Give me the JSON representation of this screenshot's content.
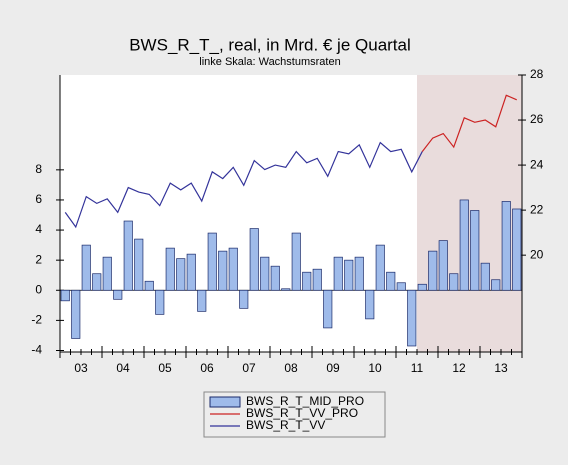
{
  "chart_data": {
    "type": "bar-line",
    "title": "BWS_R_T_, real, in Mrd. € je Quartal",
    "subtitle": "linke Skala: Wachstumsraten",
    "categories": [
      "03",
      null,
      null,
      null,
      "04",
      null,
      null,
      null,
      "05",
      null,
      null,
      null,
      "06",
      null,
      null,
      null,
      "07",
      null,
      null,
      null,
      "08",
      null,
      null,
      null,
      "09",
      null,
      null,
      null,
      "10",
      null,
      null,
      null,
      "11",
      null,
      null,
      null,
      "12",
      null,
      null,
      null,
      "13",
      null,
      null,
      null
    ],
    "series": [
      {
        "name": "BWS_R_T_MID_PRO",
        "type": "bar",
        "color": "#9fbbea",
        "axis": "y",
        "values": [
          -0.7,
          -3.2,
          3.0,
          1.1,
          2.2,
          -0.6,
          4.6,
          3.4,
          0.6,
          -1.6,
          2.8,
          2.1,
          2.4,
          -1.4,
          3.8,
          2.6,
          2.8,
          -1.2,
          4.1,
          2.2,
          1.6,
          0.1,
          3.8,
          1.2,
          1.4,
          -2.5,
          2.2,
          2.0,
          2.2,
          -1.9,
          3.0,
          1.2,
          0.5,
          -3.7,
          0.4,
          2.6,
          3.3,
          1.1,
          6.0,
          5.3,
          1.8,
          0.7,
          5.9,
          5.4
        ]
      },
      {
        "name": "BWS_R_T_VV_PRO",
        "type": "line",
        "color": "#cc2222",
        "axis": "y2",
        "values": [
          null,
          null,
          null,
          null,
          null,
          null,
          null,
          null,
          null,
          null,
          null,
          null,
          null,
          null,
          null,
          null,
          null,
          null,
          null,
          null,
          null,
          null,
          null,
          null,
          null,
          null,
          null,
          null,
          null,
          null,
          null,
          null,
          null,
          null,
          24.6,
          25.2,
          25.4,
          24.8,
          26.1,
          25.9,
          26.0,
          25.7,
          27.1,
          26.9
        ]
      },
      {
        "name": "BWS_R_T_VV",
        "type": "line",
        "color": "#33339a",
        "axis": "y2",
        "values": [
          21.9,
          21.25,
          22.6,
          22.3,
          22.5,
          21.9,
          23.0,
          22.8,
          22.7,
          22.2,
          23.2,
          22.9,
          23.2,
          22.4,
          23.7,
          23.4,
          23.9,
          23.1,
          24.2,
          23.8,
          24.0,
          23.9,
          24.6,
          24.1,
          24.3,
          23.5,
          24.6,
          24.5,
          24.9,
          23.9,
          25.0,
          24.6,
          24.7,
          23.7,
          24.6,
          null,
          null,
          null,
          null,
          null,
          null,
          null,
          null,
          null
        ]
      }
    ],
    "ylim": [
      -4.1,
      14.3
    ],
    "yticks": [
      -4,
      -2,
      0,
      2,
      4,
      6,
      8
    ],
    "y2lim": [
      15.7,
      28
    ],
    "y2ticks": [
      20,
      22,
      24,
      26,
      28
    ],
    "shaded_from_category": 34,
    "shade_color": "#e9dcdc",
    "legend": "bottom"
  }
}
